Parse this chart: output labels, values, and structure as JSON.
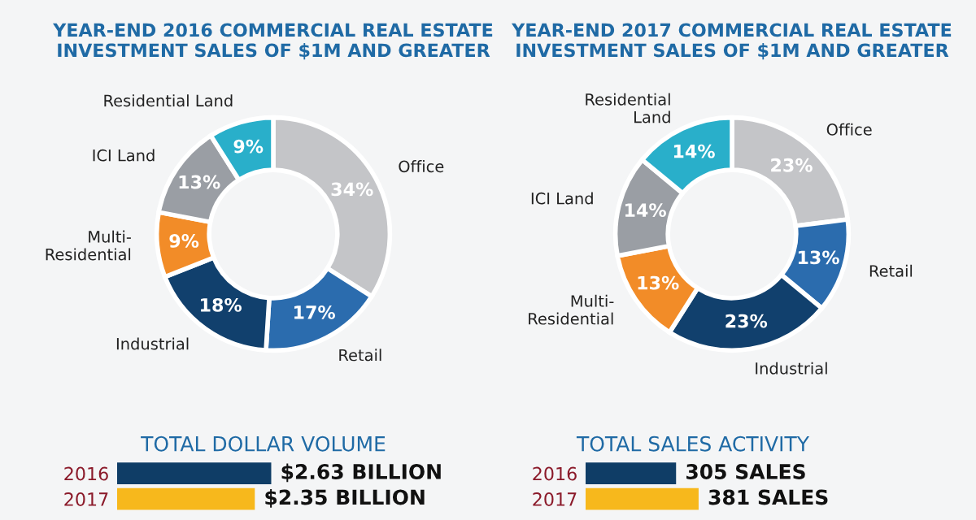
{
  "chart_data": [
    {
      "type": "donut",
      "title": "YEAR-END 2016 COMMERCIAL REAL ESTATE\nINVESTMENT SALES OF $1M AND GREATER",
      "categories": [
        "Office",
        "Retail",
        "Industrial",
        "Multi-\nResidential",
        "ICI Land",
        "Residential Land"
      ],
      "values": [
        34,
        17,
        18,
        9,
        13,
        9
      ],
      "value_labels": [
        "34%",
        "17%",
        "18%",
        "9%",
        "13%",
        "9%"
      ],
      "colors": [
        "#c4c5c8",
        "#2b6cae",
        "#11406d",
        "#f28c28",
        "#9a9ea4",
        "#29afca"
      ],
      "legend": false
    },
    {
      "type": "donut",
      "title": "YEAR-END 2017 COMMERCIAL REAL ESTATE\nINVESTMENT SALES OF $1M AND GREATER",
      "categories": [
        "Office",
        "Retail",
        "Industrial",
        "Multi-\nResidential",
        "ICI Land",
        "Residential\nLand"
      ],
      "values": [
        23,
        13,
        23,
        13,
        14,
        14
      ],
      "value_labels": [
        "23%",
        "13%",
        "23%",
        "13%",
        "14%",
        "14%"
      ],
      "colors": [
        "#c4c5c8",
        "#2b6cae",
        "#11406d",
        "#f28c28",
        "#9a9ea4",
        "#29afca"
      ],
      "legend": false
    },
    {
      "type": "bar",
      "orientation": "horizontal",
      "title": "TOTAL DOLLAR VOLUME",
      "categories": [
        "2016",
        "2017"
      ],
      "values": [
        2.63,
        2.35
      ],
      "value_labels": [
        "$2.63 BILLION",
        "$2.35 BILLION"
      ],
      "colors": [
        "#0f3d66",
        "#f7b81c"
      ],
      "tick_labels": "y",
      "legend": false,
      "grid": false
    },
    {
      "type": "bar",
      "orientation": "horizontal",
      "title": "TOTAL SALES ACTIVITY",
      "categories": [
        "2016",
        "2017"
      ],
      "values": [
        305,
        381
      ],
      "value_labels": [
        "305 SALES",
        "381 SALES"
      ],
      "colors": [
        "#0f3d66",
        "#f7b81c"
      ],
      "tick_labels": "y",
      "legend": false,
      "grid": false
    }
  ]
}
